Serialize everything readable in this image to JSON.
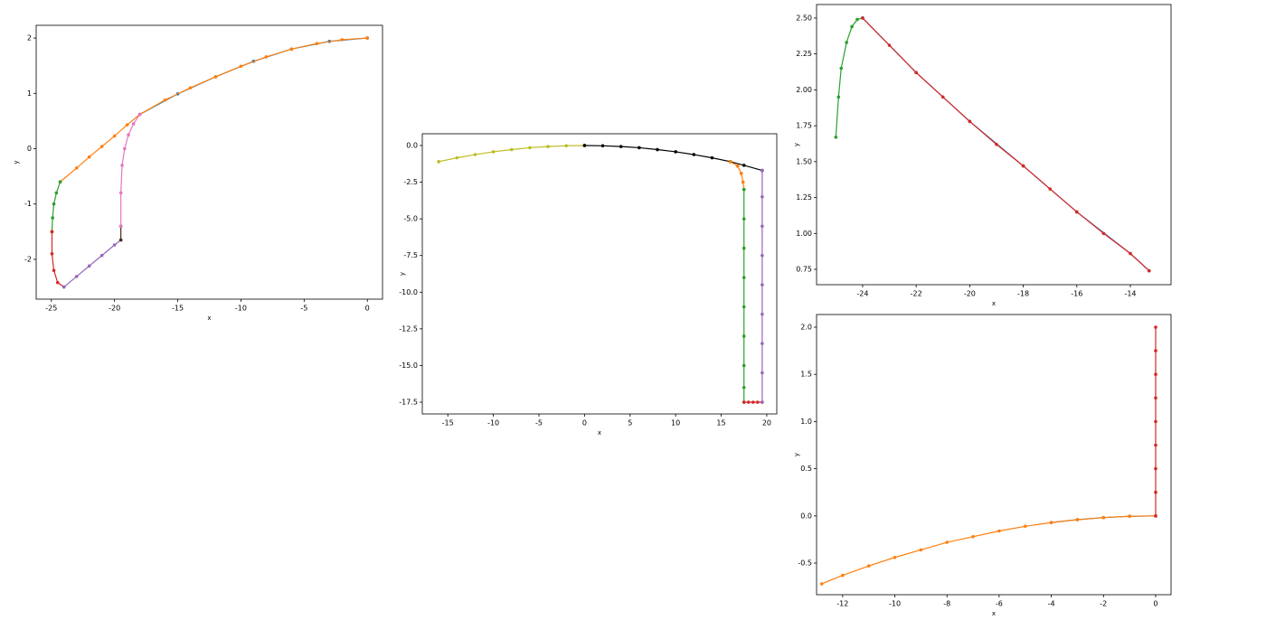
{
  "chart_data": [
    {
      "type": "line",
      "x_label": "x",
      "y_label": "y",
      "xlim": [
        -26.2,
        1.2
      ],
      "ylim": [
        -2.72,
        2.23
      ],
      "xticks": [
        -25,
        -20,
        -15,
        -10,
        -5,
        0
      ],
      "yticks": [
        -2,
        -1,
        0,
        1,
        2
      ],
      "series": [
        {
          "color": "#1f77b4",
          "x": [
            0,
            -3,
            -6,
            -9,
            -12,
            -15,
            -18
          ],
          "values": [
            2.0,
            1.94,
            1.8,
            1.58,
            1.3,
            0.99,
            0.62
          ]
        },
        {
          "color": "#ff7f0e",
          "x": [
            0,
            -2,
            -4,
            -6,
            -8,
            -10,
            -12,
            -14,
            -16,
            -18,
            -19,
            -20,
            -21,
            -22,
            -23,
            -24.3
          ],
          "values": [
            2.0,
            1.97,
            1.9,
            1.8,
            1.66,
            1.49,
            1.3,
            1.1,
            0.88,
            0.62,
            0.43,
            0.23,
            0.04,
            -0.15,
            -0.35,
            -0.6
          ]
        },
        {
          "color": "#2ca02c",
          "x": [
            -24.3,
            -24.6,
            -24.8,
            -24.9,
            -24.95
          ],
          "values": [
            -0.6,
            -0.8,
            -1.0,
            -1.25,
            -1.5
          ]
        },
        {
          "color": "#d62728",
          "x": [
            -24.95,
            -24.95,
            -24.8,
            -24.5,
            -24.0
          ],
          "values": [
            -1.5,
            -1.9,
            -2.2,
            -2.42,
            -2.5
          ]
        },
        {
          "color": "#9467bd",
          "x": [
            -24,
            -23,
            -22,
            -21,
            -20,
            -19.5
          ],
          "values": [
            -2.5,
            -2.31,
            -2.12,
            -1.93,
            -1.74,
            -1.65
          ]
        },
        {
          "color": "#4a2a14",
          "x": [
            -19.5,
            -19.5
          ],
          "values": [
            -1.65,
            -1.4
          ]
        },
        {
          "color": "#e377c2",
          "x": [
            -19.5,
            -19.5,
            -19.4,
            -19.2,
            -18.9,
            -18.5,
            -18.0
          ],
          "values": [
            -1.4,
            -0.8,
            -0.3,
            0.0,
            0.25,
            0.45,
            0.62
          ]
        }
      ]
    },
    {
      "type": "line",
      "x_label": "x",
      "y_label": "y",
      "xlim": [
        -17.8,
        21.1
      ],
      "ylim": [
        -18.3,
        0.8
      ],
      "xticks": [
        -15,
        -10,
        -5,
        0,
        5,
        10,
        15,
        20
      ],
      "yticks": [
        {
          "value": 0,
          "label": "0.0"
        },
        -2.5,
        {
          "value": -5,
          "label": "-5.0"
        },
        -7.5,
        {
          "value": -10,
          "label": "-10.0"
        },
        -12.5,
        {
          "value": -15,
          "label": "-15.0"
        },
        -17.5
      ],
      "series": [
        {
          "color": "#bcbd22",
          "x": [
            -16,
            -14,
            -12,
            -10,
            -8,
            -6,
            -4,
            -2,
            0
          ],
          "values": [
            -1.1,
            -0.84,
            -0.62,
            -0.43,
            -0.28,
            -0.15,
            -0.07,
            -0.02,
            0
          ]
        },
        {
          "color": "#000000",
          "x": [
            0,
            2,
            4,
            6,
            8,
            10,
            12,
            14,
            16,
            17.5,
            19.5
          ],
          "values": [
            0,
            -0.02,
            -0.07,
            -0.15,
            -0.28,
            -0.43,
            -0.62,
            -0.84,
            -1.1,
            -1.35,
            -1.7
          ]
        },
        {
          "color": "#ff7f0e",
          "x": [
            16,
            16.8,
            17.2,
            17.4,
            17.5
          ],
          "values": [
            -1.1,
            -1.4,
            -1.9,
            -2.5,
            -3.0
          ]
        },
        {
          "color": "#2ca02c",
          "x": [
            17.5,
            17.5,
            17.5,
            17.5,
            17.5,
            17.5,
            17.5,
            17.5,
            17.5
          ],
          "values": [
            -3,
            -5,
            -7,
            -9,
            -11,
            -13,
            -15,
            -16.5,
            -17.5
          ]
        },
        {
          "color": "#d62728",
          "x": [
            17.5,
            18,
            18.5,
            19,
            19.5
          ],
          "values": [
            -17.5,
            -17.5,
            -17.5,
            -17.5,
            -17.5
          ]
        },
        {
          "color": "#9467bd",
          "x": [
            19.5,
            19.5,
            19.5,
            19.5,
            19.5,
            19.5,
            19.5,
            19.5,
            19.5
          ],
          "values": [
            -17.5,
            -15.5,
            -13.5,
            -11.5,
            -9.5,
            -7.5,
            -5.5,
            -3.5,
            -1.7
          ]
        }
      ]
    },
    {
      "type": "line",
      "x_label": "x",
      "y_label": "y",
      "xlim": [
        -25.72,
        -12.48
      ],
      "ylim": [
        0.643,
        2.594
      ],
      "xticks": [
        -24,
        -22,
        -20,
        -18,
        -16,
        -14
      ],
      "yticks": [
        0.75,
        {
          "value": 1,
          "label": "1.00"
        },
        1.25,
        {
          "value": 1.5,
          "label": "1.50"
        },
        1.75,
        {
          "value": 2,
          "label": "2.00"
        },
        2.25,
        {
          "value": 2.5,
          "label": "2.50"
        }
      ],
      "series": [
        {
          "color": "#2ca02c",
          "x": [
            -25,
            -24.9,
            -24.8,
            -24.6,
            -24.4,
            -24.2,
            -24.0
          ],
          "values": [
            1.67,
            1.95,
            2.15,
            2.33,
            2.44,
            2.49,
            2.5
          ]
        },
        {
          "color": "#1f77b4",
          "x": [
            -24,
            -22,
            -20,
            -18,
            -16,
            -14,
            -13.3
          ],
          "values": [
            2.5,
            2.12,
            1.78,
            1.47,
            1.15,
            0.86,
            0.74
          ]
        },
        {
          "color": "#d62728",
          "x": [
            -24,
            -23,
            -22,
            -21,
            -20,
            -19,
            -18,
            -17,
            -16,
            -15,
            -14,
            -13.3
          ],
          "values": [
            2.5,
            2.31,
            2.12,
            1.95,
            1.78,
            1.62,
            1.47,
            1.31,
            1.15,
            1.0,
            0.86,
            0.74
          ]
        }
      ]
    },
    {
      "type": "line",
      "x_label": "x",
      "y_label": "y",
      "xlim": [
        -13.0,
        0.59
      ],
      "ylim": [
        -0.835,
        2.134
      ],
      "xticks": [
        -12,
        -10,
        -8,
        -6,
        -4,
        -2,
        0
      ],
      "yticks": [
        -0.5,
        {
          "value": 0,
          "label": "0.0"
        },
        0.5,
        {
          "value": 1,
          "label": "1.0"
        },
        1.5,
        {
          "value": 2,
          "label": "2.0"
        }
      ],
      "series": [
        {
          "color": "#1f77b4",
          "x": [
            -4,
            -3,
            -2,
            -1,
            0
          ],
          "values": [
            -0.07,
            -0.04,
            -0.018,
            -0.004,
            0
          ]
        },
        {
          "color": "#ff7f0e",
          "x": [
            -12.8,
            -12,
            -11,
            -10,
            -9,
            -8,
            -7,
            -6,
            -5,
            -4,
            -3,
            -2,
            -1,
            0
          ],
          "values": [
            -0.72,
            -0.63,
            -0.53,
            -0.44,
            -0.36,
            -0.28,
            -0.22,
            -0.16,
            -0.11,
            -0.07,
            -0.04,
            -0.018,
            -0.004,
            0
          ]
        },
        {
          "color": "#d62728",
          "x": [
            0,
            0,
            0,
            0,
            0,
            0,
            0,
            0,
            0
          ],
          "values": [
            0,
            0.25,
            0.5,
            0.75,
            1.0,
            1.25,
            1.5,
            1.75,
            2.0
          ]
        }
      ]
    }
  ]
}
